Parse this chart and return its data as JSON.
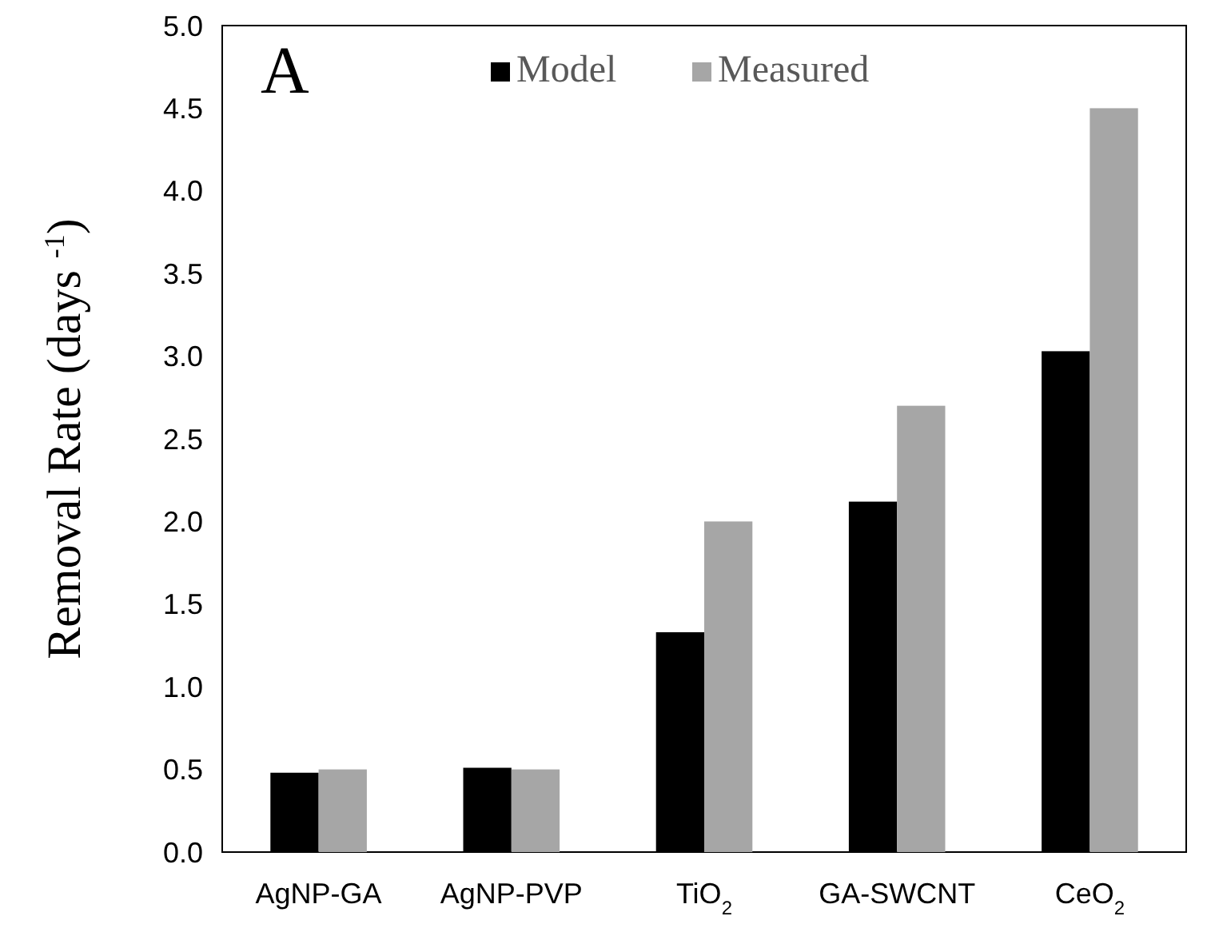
{
  "chart_data": {
    "type": "bar",
    "ylabel": "Removal Rate (days $^{-1}$)",
    "annotations": [
      "A"
    ],
    "categories": [
      "AgNP-GA",
      "AgNP-PVP",
      "TiO$_{2}$",
      "GA-SWCNT",
      "CeO$_{2}$"
    ],
    "series": [
      {
        "name": "Model",
        "color": "#000000",
        "values": [
          0.48,
          0.51,
          1.33,
          2.12,
          3.03
        ]
      },
      {
        "name": "Measured",
        "color": "#a6a6a6",
        "values": [
          0.5,
          0.5,
          2.0,
          2.7,
          4.5
        ]
      }
    ],
    "ylim": [
      0,
      5
    ],
    "yticks": [
      {
        "value": 0,
        "label": "0.0"
      },
      {
        "value": 0.5,
        "label": "0.5"
      },
      {
        "value": 1,
        "label": "1.0"
      },
      {
        "value": 1.5,
        "label": "1.5"
      },
      {
        "value": 2,
        "label": "2.0"
      },
      {
        "value": 2.5,
        "label": "2.5"
      },
      {
        "value": 3,
        "label": "3.0"
      },
      {
        "value": 3.5,
        "label": "3.5"
      },
      {
        "value": 4,
        "label": "4.0"
      },
      {
        "value": 4.5,
        "label": "4.5"
      },
      {
        "value": 5,
        "label": "5.0"
      }
    ],
    "legend": "top",
    "grid": false
  }
}
